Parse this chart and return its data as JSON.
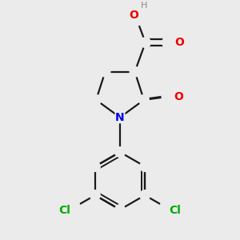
{
  "background_color": "#ebebeb",
  "bond_color": "#1a1a1a",
  "N_color": "#0000ee",
  "O_color": "#ee0000",
  "Cl_color": "#00aa00",
  "H_color": "#888888",
  "figsize": [
    3.0,
    3.0
  ],
  "dpi": 100,
  "xlim": [
    -1.5,
    1.5
  ],
  "ylim": [
    -2.0,
    1.8
  ]
}
